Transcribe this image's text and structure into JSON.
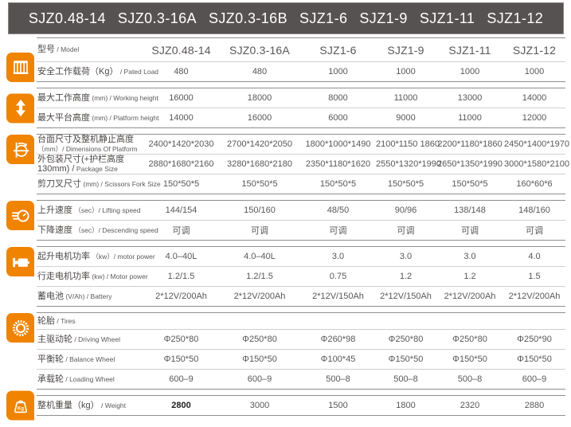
{
  "banner": {
    "models": [
      "SJZ0.48-14",
      "SJZ0.3-16A",
      "SJZ0.3-16B",
      "SJZ1-6",
      "SJZ1-9",
      "SJZ1-11",
      "SJZ1-12"
    ]
  },
  "colors": {
    "accent_orange": "#F08300",
    "banner_background": "#575252",
    "strong_line": "#8f8f8f",
    "light_line": "#cfcfcf",
    "text_gray": "#595757"
  },
  "spec_table": {
    "sections": [
      {
        "icon": "platform-load-icon",
        "rows": [
          {
            "zh": "型号",
            "en": "/ Model",
            "style": "model",
            "values": [
              "SJZ0.48-14",
              "SJZ0.3-16A",
              "SJZ1-6",
              "SJZ1-9",
              "SJZ1-11",
              "SJZ1-12"
            ]
          },
          {
            "zh": "安全工作载荷（Kg）",
            "en": "/ Pated Load",
            "values": [
              "480",
              "480",
              "1000",
              "1000",
              "1000",
              "1000"
            ]
          }
        ]
      },
      {
        "icon": "height-arrow-icon",
        "rows": [
          {
            "zh": "最大工作高度",
            "en": "(mm) / Working height",
            "values": [
              "16000",
              "18000",
              "8000",
              "11000",
              "13000",
              "14000"
            ]
          },
          {
            "zh": "最大平台高度",
            "en": "(mm) / Platform height",
            "values": [
              "14000",
              "16000",
              "6000",
              "9000",
              "11000",
              "12000"
            ]
          }
        ]
      },
      {
        "icon": "dimensions-icon",
        "rows": [
          {
            "zh": "台面尺寸及整机静止高度",
            "en": "（mm）/ Dimensions Of Platform",
            "values": [
              "2400*1420*2030",
              "2700*1420*2050",
              "1800*1000*1490",
              "2100*1150 1860",
              "2200*1180*1860",
              "2450*1400*1970"
            ]
          },
          {
            "zh": "外包装尺寸(+护栏高度130mm) /",
            "en": "Package Size",
            "values": [
              "2880*1680*2160",
              "3280*1680*2180",
              "2350*1180*1620",
              "2550*1320*1990",
              "2650*1350*1990",
              "3000*1580*2100"
            ]
          },
          {
            "zh": "剪刀叉尺寸",
            "en": "(mm) / Scissors Fork Size",
            "values": [
              "150*50*5",
              "150*50*5",
              "150*50*5",
              "150*50*5",
              "150*50*5",
              "160*60*6"
            ]
          }
        ]
      },
      {
        "icon": "speed-icon",
        "rows": [
          {
            "zh": "上升速度",
            "en": "（sec）/ Lifting speed",
            "values": [
              "144/154",
              "150/160",
              "48/50",
              "90/96",
              "138/148",
              "148/160"
            ]
          },
          {
            "zh": "下降速度",
            "en": "（sec）/ Descending speed",
            "values": [
              "可调",
              "可调",
              "可调",
              "可调",
              "可调",
              "可调"
            ]
          }
        ]
      },
      {
        "icon": "motor-icon",
        "rows": [
          {
            "zh": "起升电机功率",
            "en": "（kw）/ motor power",
            "values": [
              "4.0–40L",
              "4.0–40L",
              "3.0",
              "3.0",
              "3.0",
              "4.0"
            ]
          },
          {
            "zh": "行走电机功率",
            "en": "(kw) / Motor power",
            "values": [
              "1.2/1.5",
              "1.2/1.5",
              "0.75",
              "1.2",
              "1.2",
              "1.5"
            ]
          },
          {
            "zh": "蓄电池",
            "en": "(V/Ah) / Battery",
            "values": [
              "2*12V/200Ah",
              "2*12V/200Ah",
              "2*12V/150Ah",
              "2*12V/150Ah",
              "2*12V/200Ah",
              "2*12V/200Ah"
            ]
          }
        ]
      },
      {
        "icon": "tire-icon",
        "rows": [
          {
            "zh": "轮胎",
            "en": "/ Tires",
            "style": "span",
            "values": null
          },
          {
            "zh": "主驱动轮",
            "en": "/ Driving Wheel",
            "values": [
              "Φ250*80",
              "Φ250*80",
              "Φ260*98",
              "Φ250*80",
              "Φ250*80",
              "Φ250*90"
            ]
          },
          {
            "zh": "平衡轮",
            "en": "/ Balance Wheel",
            "values": [
              "Φ150*50",
              "Φ150*50",
              "Φ100*45",
              "Φ150*50",
              "Φ150*50",
              "Φ150*50"
            ]
          },
          {
            "zh": "承载轮",
            "en": "/ Loading Wheel",
            "values": [
              "600–9",
              "600–9",
              "500–8",
              "500–8",
              "500–8",
              "600–9"
            ]
          }
        ]
      },
      {
        "icon": "weight-icon",
        "rows": [
          {
            "zh": "整机重量（kg）",
            "en": "/ Weight",
            "bold_cols": [
              0
            ],
            "values": [
              "2800",
              "3000",
              "1500",
              "1800",
              "2320",
              "2880"
            ]
          }
        ]
      }
    ]
  }
}
